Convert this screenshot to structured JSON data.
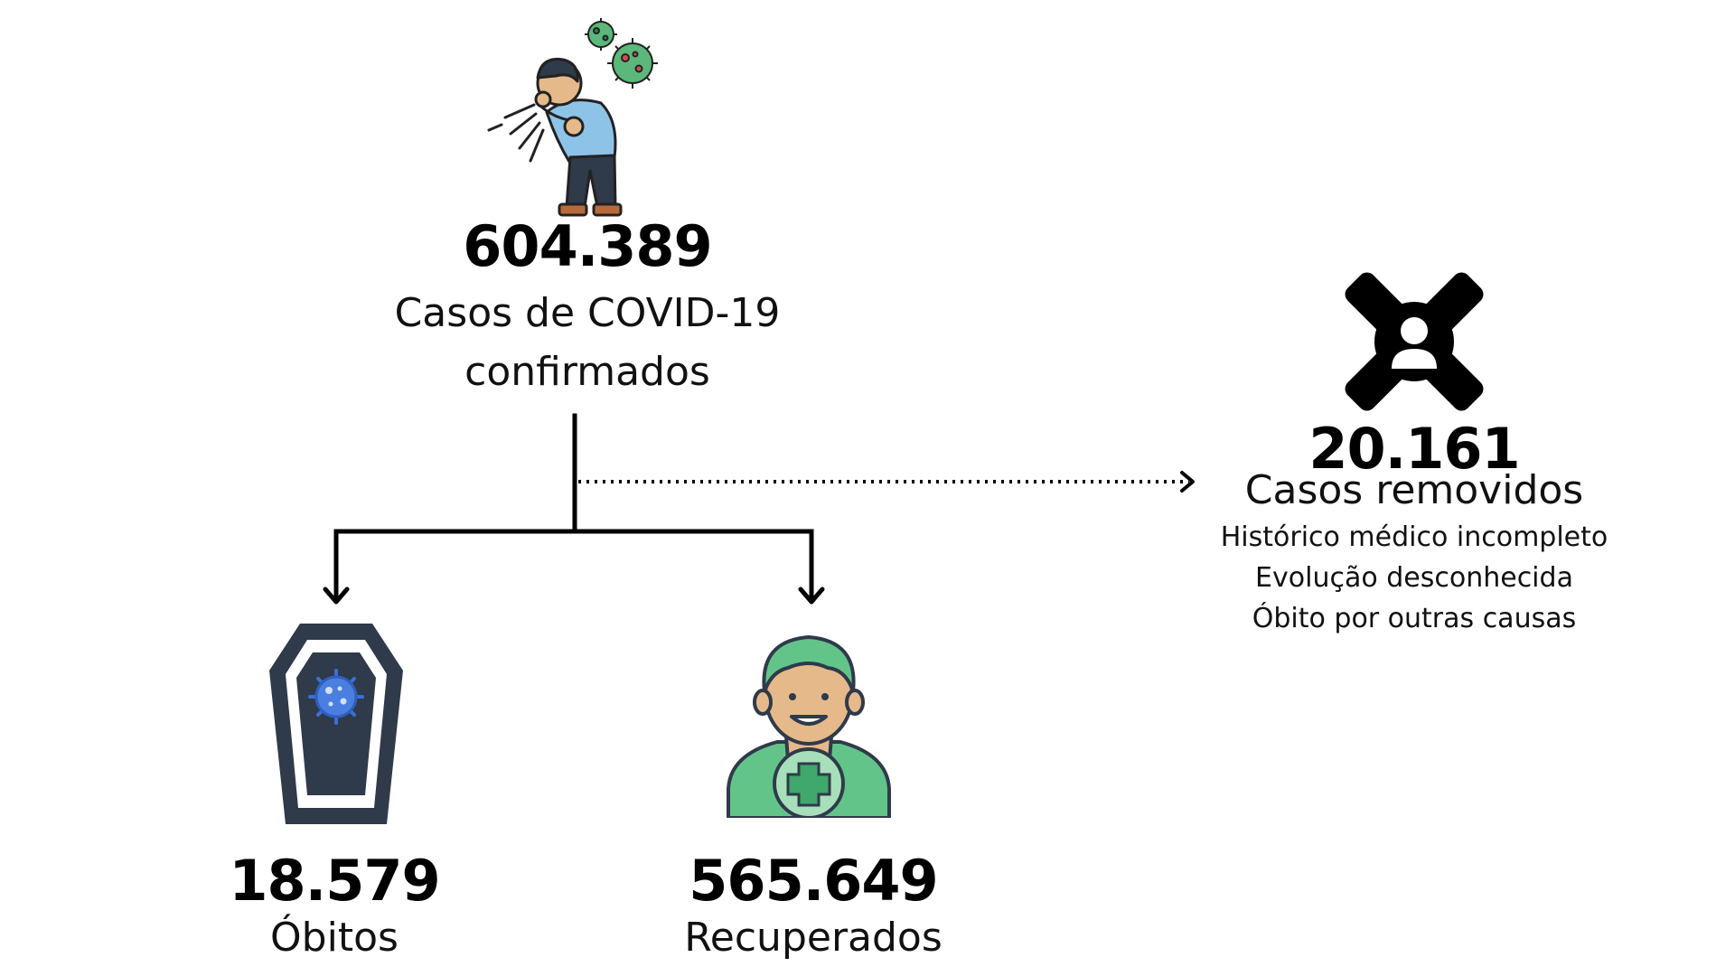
{
  "confirmed": {
    "value": "604.389",
    "label_line1": "Casos de COVID-19",
    "label_line2": "confirmados",
    "icon": "coughing-person-icon"
  },
  "removed": {
    "value": "20.161",
    "label": "Casos removidos",
    "reasons": [
      "Histórico médico incompleto",
      "Evolução desconhecida",
      "Óbito por outras causas"
    ],
    "icon": "person-x-icon"
  },
  "deaths": {
    "value": "18.579",
    "label": "Óbitos",
    "icon": "coffin-virus-icon"
  },
  "recovered": {
    "value": "565.649",
    "label": "Recuperados",
    "icon": "recovered-doctor-icon"
  },
  "colors": {
    "virus_green": "#5cb87a",
    "virus_red": "#d8485a",
    "coffin_dark": "#2f3a4a",
    "virus_blue": "#3d6fd6",
    "recovered_green": "#63c48a",
    "skin": "#e6b98a"
  }
}
